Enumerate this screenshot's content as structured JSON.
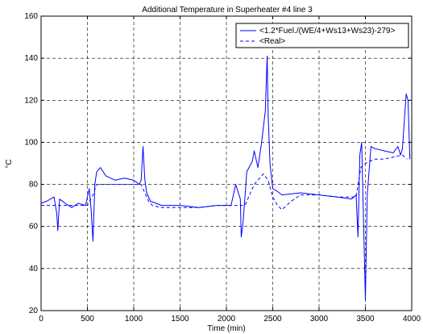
{
  "chart_data": {
    "type": "line",
    "title": "Additional Temperature in Superheater #4 line 3",
    "xlabel": "Time (min)",
    "ylabel": "°C",
    "xlim": [
      0,
      4000
    ],
    "ylim": [
      20,
      160
    ],
    "x_ticks": [
      0,
      500,
      1000,
      1500,
      2000,
      2500,
      3000,
      3500,
      4000
    ],
    "y_ticks": [
      20,
      40,
      60,
      80,
      100,
      120,
      140,
      160
    ],
    "grid": "dashed",
    "legend_position": "top-right",
    "colors": {
      "series": "#0000ff",
      "axes": "#000000",
      "grid": "#000000"
    },
    "series": [
      {
        "name": "<1.2*Fuel./(WE/4+Ws13+Ws23)-279>",
        "style": "solid",
        "x": [
          0,
          60,
          140,
          170,
          180,
          200,
          260,
          330,
          400,
          480,
          520,
          540,
          560,
          580,
          600,
          640,
          700,
          800,
          900,
          1000,
          1060,
          1080,
          1100,
          1120,
          1140,
          1180,
          1300,
          1500,
          1700,
          1900,
          2050,
          2100,
          2150,
          2160,
          2180,
          2220,
          2280,
          2300,
          2340,
          2380,
          2420,
          2440,
          2450,
          2470,
          2500,
          2540,
          2600,
          2800,
          3000,
          3200,
          3350,
          3400,
          3420,
          3440,
          3460,
          3500,
          3520,
          3560,
          3600,
          3700,
          3800,
          3850,
          3880,
          3900,
          3920,
          3940,
          3960,
          3980
        ],
        "y": [
          71,
          72,
          74,
          66,
          58,
          73,
          71,
          69,
          71,
          70,
          78,
          68,
          53,
          80,
          86,
          88,
          84,
          82,
          83,
          82,
          80,
          82,
          98,
          82,
          76,
          72,
          70,
          70,
          69,
          70,
          70,
          80,
          73,
          55,
          62,
          86,
          91,
          96,
          88,
          100,
          115,
          141,
          113,
          90,
          78,
          77,
          75,
          76,
          75,
          74,
          73,
          75,
          55,
          94,
          100,
          25,
          75,
          98,
          97,
          96,
          95,
          98,
          94,
          97,
          110,
          123,
          120,
          92
        ]
      },
      {
        "name": "<Real>",
        "style": "dashed",
        "x": [
          0,
          100,
          200,
          300,
          400,
          500,
          560,
          600,
          700,
          800,
          900,
          1000,
          1080,
          1120,
          1160,
          1200,
          1300,
          1500,
          1700,
          1900,
          2000,
          2100,
          2200,
          2300,
          2400,
          2450,
          2500,
          2550,
          2600,
          2700,
          2800,
          3000,
          3200,
          3400,
          3450,
          3500,
          3600,
          3700,
          3800,
          3900,
          3950
        ],
        "y": [
          70,
          70,
          70,
          70,
          70,
          70,
          75,
          80,
          80,
          80,
          80,
          80,
          80,
          76,
          72,
          70,
          69,
          69,
          69,
          70,
          70,
          70,
          70,
          80,
          85,
          82,
          74,
          70,
          68,
          72,
          75,
          75,
          74,
          74,
          88,
          90,
          92,
          92,
          93,
          94,
          92
        ]
      }
    ]
  }
}
